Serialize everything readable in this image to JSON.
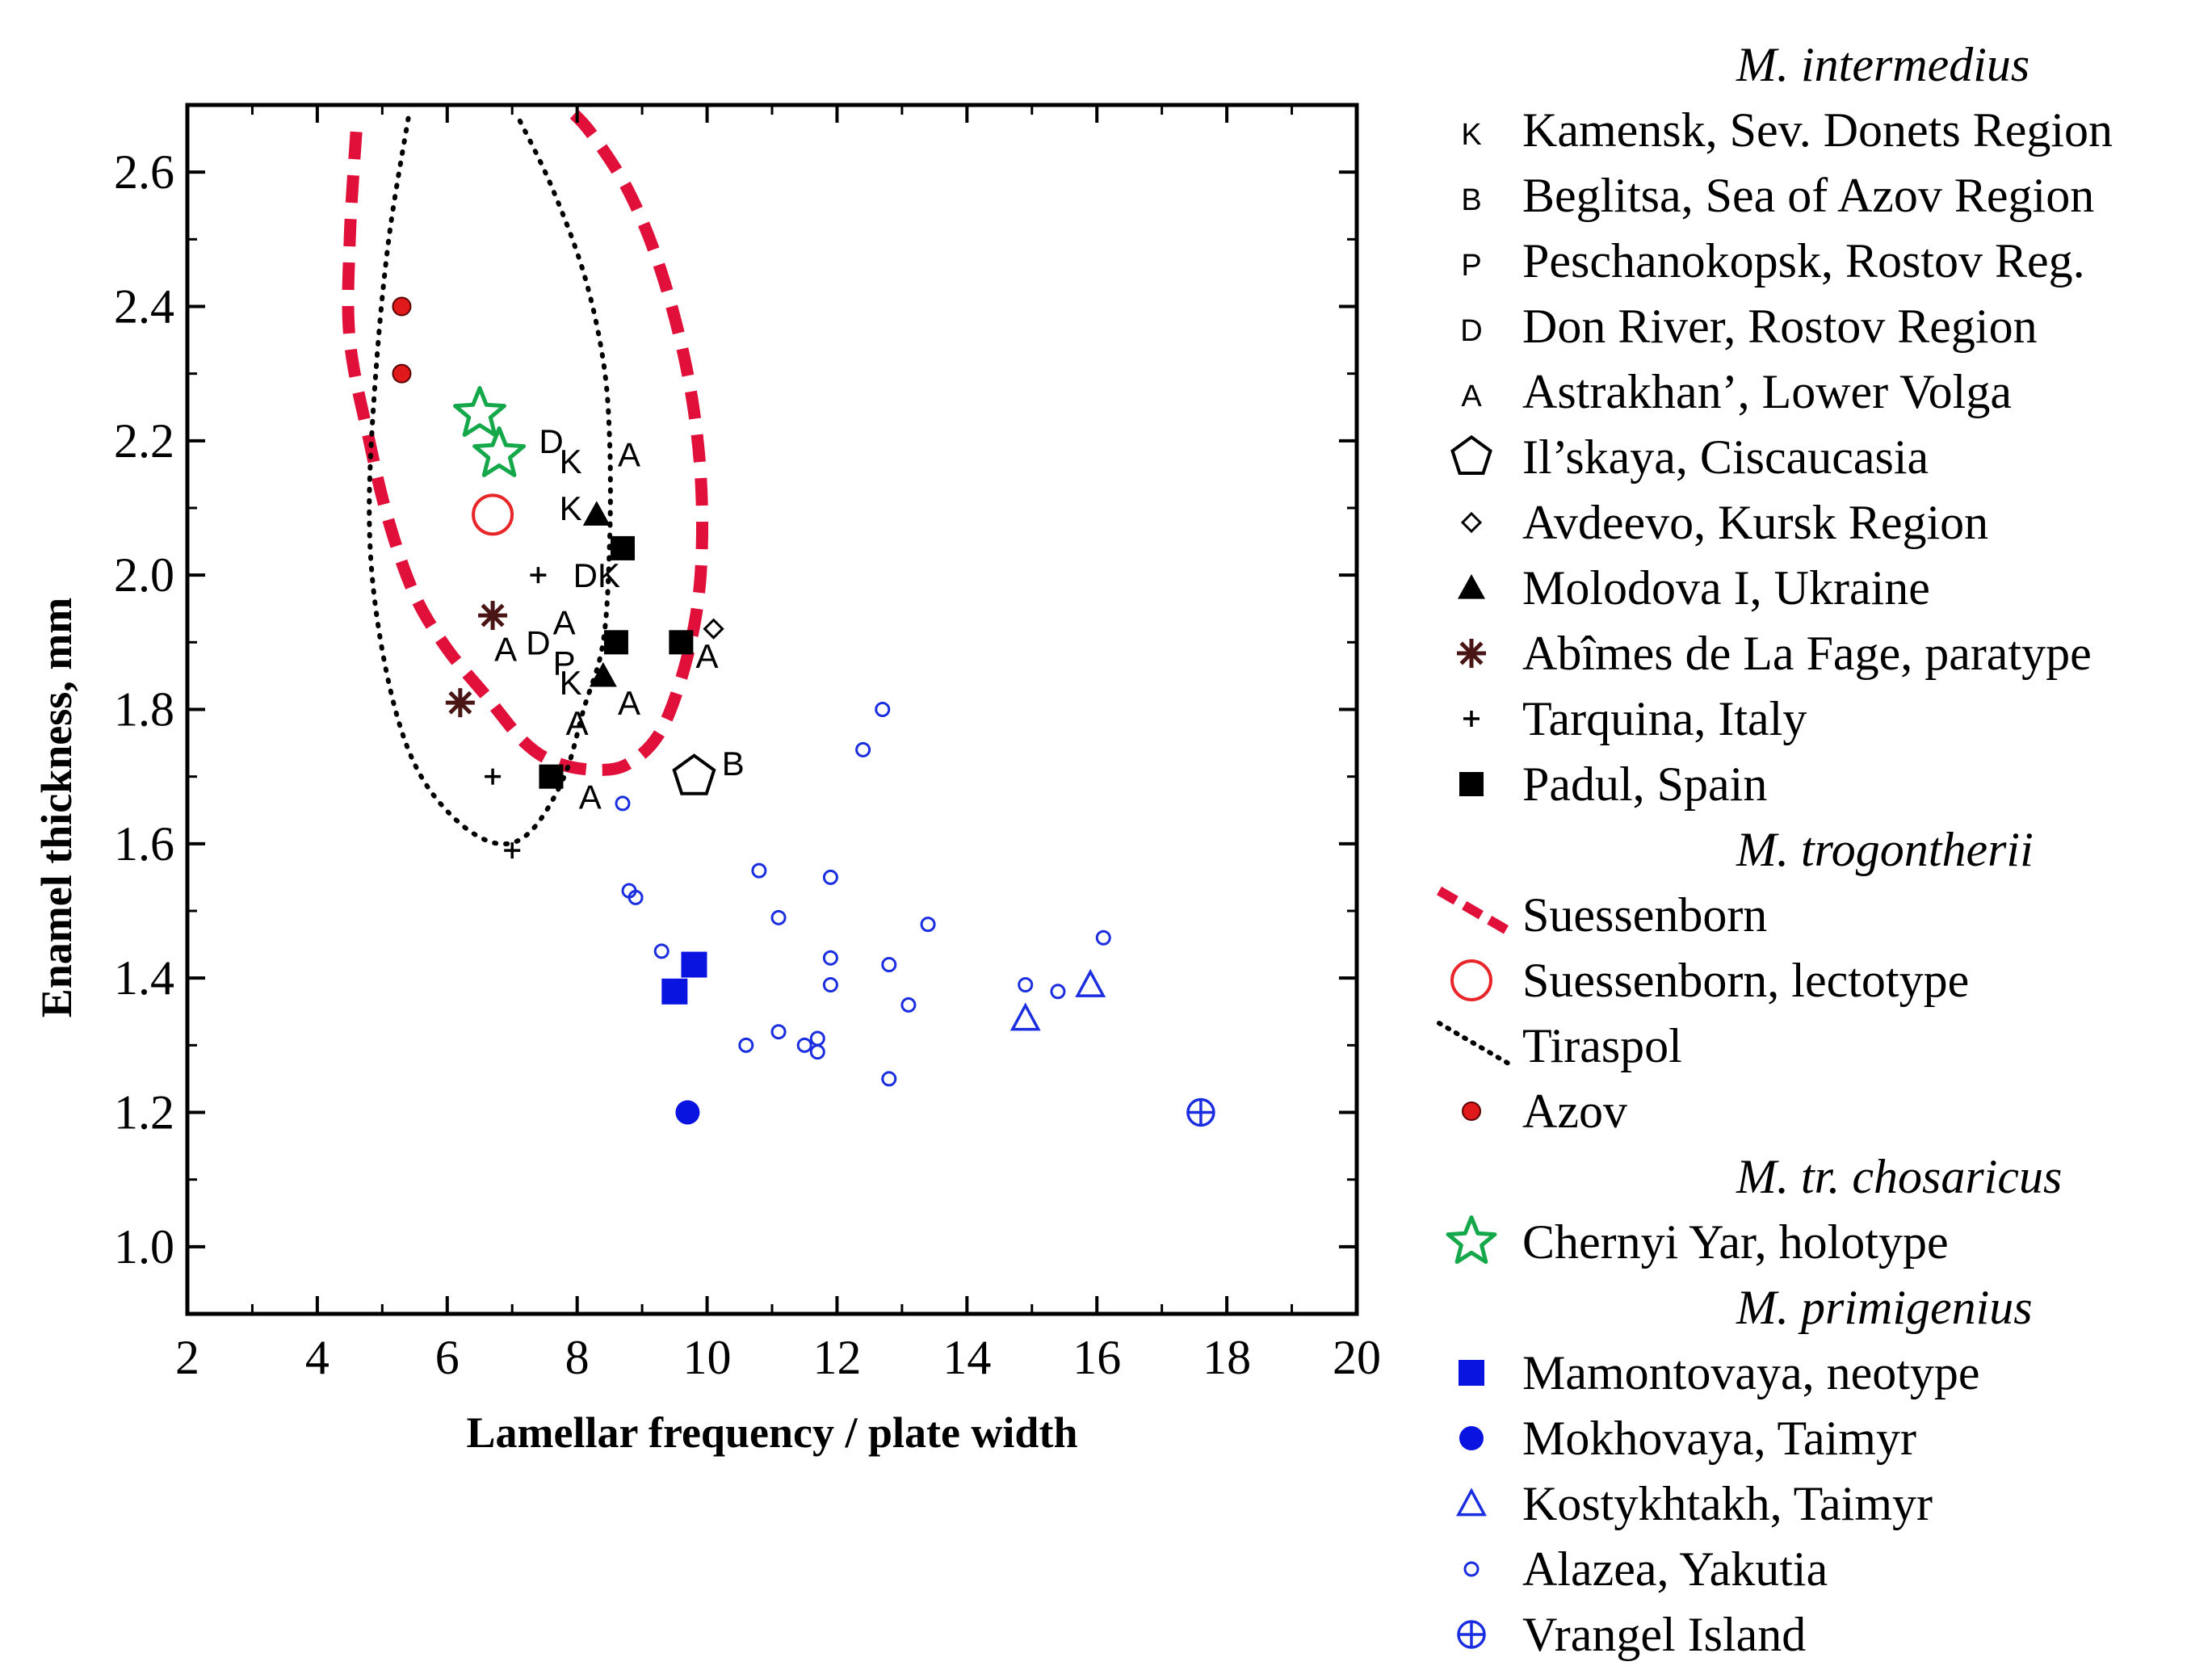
{
  "chart_data": {
    "type": "scatter",
    "xlabel": "Lamellar frequency / plate width",
    "ylabel": "Enamel thickness, mm",
    "xlim": [
      2,
      20
    ],
    "ylim": [
      0.9,
      2.7
    ],
    "xticks": [
      2,
      4,
      6,
      8,
      10,
      12,
      14,
      16,
      18,
      20
    ],
    "yticks": [
      1.0,
      1.2,
      1.4,
      1.6,
      1.8,
      2.0,
      2.2,
      2.4,
      2.6
    ],
    "xtick_labels": [
      "2",
      "4",
      "6",
      "8",
      "10",
      "12",
      "14",
      "16",
      "18",
      "20"
    ],
    "ytick_labels": [
      "1.0",
      "1.2",
      "1.4",
      "1.6",
      "1.8",
      "2.0",
      "2.2",
      "2.4",
      "2.6"
    ],
    "grid": false,
    "legend_position": "right",
    "legend_groups": [
      {
        "header": "M. intermedius",
        "items": [
          {
            "marker": "letter",
            "symbol": "K",
            "label": "Kamensk, Sev. Donets Region"
          },
          {
            "marker": "letter",
            "symbol": "B",
            "label": "Beglitsa, Sea of Azov Region"
          },
          {
            "marker": "letter",
            "symbol": "P",
            "label": "Peschanokopsk, Rostov Reg."
          },
          {
            "marker": "letter",
            "symbol": "D",
            "label": "Don River, Rostov Region"
          },
          {
            "marker": "letter",
            "symbol": "A",
            "label": "Astrakhan’, Lower Volga"
          },
          {
            "marker": "pentagon",
            "label": "Il’skaya, Ciscaucasia"
          },
          {
            "marker": "diamond",
            "label": "Avdeevo, Kursk Region"
          },
          {
            "marker": "triangle-filled",
            "label": "Molodova I, Ukraine"
          },
          {
            "marker": "asterisk",
            "label": "Abîmes de La Fage, paratype"
          },
          {
            "marker": "plus",
            "label": "Tarquina, Italy"
          },
          {
            "marker": "square-filled",
            "label": "Padul, Spain"
          }
        ]
      },
      {
        "header": "M. trogontherii",
        "items": [
          {
            "marker": "dashed-line",
            "label": "Suessenborn"
          },
          {
            "marker": "circle-open-red",
            "label": "Suessenborn, lectotype"
          },
          {
            "marker": "dotted-line",
            "label": "Tiraspol"
          },
          {
            "marker": "red-dot",
            "label": "Azov"
          }
        ]
      },
      {
        "header": "M. tr. chosaricus",
        "items": [
          {
            "marker": "star",
            "label": "Chernyi Yar, holotype"
          }
        ]
      },
      {
        "header": "M. primigenius",
        "items": [
          {
            "marker": "blue-square",
            "label": "Mamontovaya, neotype"
          },
          {
            "marker": "blue-circle",
            "label": "Mokhovaya, Taimyr"
          },
          {
            "marker": "blue-triangle",
            "label": "Kostykhtakh, Taimyr"
          },
          {
            "marker": "blue-small-circle",
            "label": "Alazea, Yakutia"
          },
          {
            "marker": "blue-circle-plus",
            "label": "Vrangel Island"
          }
        ]
      }
    ],
    "letter_points": [
      {
        "x": 7.6,
        "y": 2.2,
        "label": "D"
      },
      {
        "x": 7.9,
        "y": 2.17,
        "label": "K"
      },
      {
        "x": 8.8,
        "y": 2.18,
        "label": "A"
      },
      {
        "x": 7.9,
        "y": 2.1,
        "label": "K"
      },
      {
        "x": 8.3,
        "y": 2.0,
        "label": "DK"
      },
      {
        "x": 7.8,
        "y": 1.93,
        "label": "A"
      },
      {
        "x": 6.9,
        "y": 1.89,
        "label": "A"
      },
      {
        "x": 7.4,
        "y": 1.9,
        "label": "D"
      },
      {
        "x": 7.8,
        "y": 1.87,
        "label": "P"
      },
      {
        "x": 7.9,
        "y": 1.84,
        "label": "K"
      },
      {
        "x": 8.8,
        "y": 1.81,
        "label": "A"
      },
      {
        "x": 8.0,
        "y": 1.78,
        "label": "A"
      },
      {
        "x": 10.0,
        "y": 1.88,
        "label": "A"
      },
      {
        "x": 10.4,
        "y": 1.72,
        "label": "B"
      },
      {
        "x": 8.2,
        "y": 1.67,
        "label": "A"
      }
    ],
    "series": [
      {
        "name": "Il’skaya, Ciscaucasia",
        "marker": "pentagon",
        "points": [
          [
            9.8,
            1.7
          ]
        ]
      },
      {
        "name": "Avdeevo, Kursk Region",
        "marker": "diamond",
        "points": [
          [
            10.1,
            1.92
          ]
        ]
      },
      {
        "name": "Molodova I, Ukraine",
        "marker": "triangle-filled",
        "points": [
          [
            8.3,
            2.09
          ],
          [
            8.4,
            1.85
          ]
        ]
      },
      {
        "name": "Abîmes de La Fage, paratype",
        "marker": "asterisk",
        "points": [
          [
            6.7,
            1.94
          ],
          [
            6.2,
            1.81
          ]
        ]
      },
      {
        "name": "Tarquina, Italy",
        "marker": "plus",
        "points": [
          [
            7.4,
            2.0
          ],
          [
            6.7,
            1.7
          ],
          [
            7.0,
            1.59
          ]
        ]
      },
      {
        "name": "Padul, Spain",
        "marker": "square-filled",
        "points": [
          [
            8.7,
            2.04
          ],
          [
            8.6,
            1.9
          ],
          [
            9.6,
            1.9
          ],
          [
            7.6,
            1.7
          ]
        ]
      },
      {
        "name": "Suessenborn, lectotype",
        "marker": "circle-open-red",
        "points": [
          [
            6.7,
            2.09
          ]
        ]
      },
      {
        "name": "Azov",
        "marker": "red-dot",
        "points": [
          [
            5.3,
            2.4
          ],
          [
            5.3,
            2.3
          ]
        ]
      },
      {
        "name": "Chernyi Yar, holotype",
        "marker": "star",
        "points": [
          [
            6.5,
            2.24
          ],
          [
            6.8,
            2.18
          ]
        ]
      },
      {
        "name": "Mamontovaya, neotype",
        "marker": "blue-square",
        "points": [
          [
            9.5,
            1.38
          ],
          [
            9.8,
            1.42
          ]
        ]
      },
      {
        "name": "Mokhovaya, Taimyr",
        "marker": "blue-circle",
        "points": [
          [
            9.7,
            1.2
          ]
        ]
      },
      {
        "name": "Kostykhtakh, Taimyr",
        "marker": "blue-triangle",
        "points": [
          [
            14.9,
            1.34
          ],
          [
            15.9,
            1.39
          ]
        ]
      },
      {
        "name": "Alazea, Yakutia",
        "marker": "blue-small-circle",
        "points": [
          [
            12.7,
            1.8
          ],
          [
            12.4,
            1.74
          ],
          [
            8.7,
            1.66
          ],
          [
            10.8,
            1.56
          ],
          [
            11.9,
            1.55
          ],
          [
            8.8,
            1.53
          ],
          [
            8.9,
            1.52
          ],
          [
            11.1,
            1.49
          ],
          [
            13.4,
            1.48
          ],
          [
            16.1,
            1.46
          ],
          [
            9.3,
            1.44
          ],
          [
            11.9,
            1.43
          ],
          [
            12.8,
            1.42
          ],
          [
            11.9,
            1.39
          ],
          [
            14.9,
            1.39
          ],
          [
            15.4,
            1.38
          ],
          [
            13.1,
            1.36
          ],
          [
            11.1,
            1.32
          ],
          [
            11.7,
            1.31
          ],
          [
            11.5,
            1.3
          ],
          [
            10.6,
            1.3
          ],
          [
            11.7,
            1.29
          ],
          [
            12.8,
            1.25
          ]
        ]
      },
      {
        "name": "Vrangel Island",
        "marker": "blue-circle-plus",
        "points": [
          [
            17.6,
            1.2
          ]
        ]
      }
    ],
    "curves": [
      {
        "name": "Suessenborn",
        "style": "dashed",
        "color": "#e0103a",
        "points": [
          [
            4.6,
            2.66
          ],
          [
            4.5,
            2.5
          ],
          [
            4.5,
            2.35
          ],
          [
            4.8,
            2.2
          ],
          [
            5.1,
            2.08
          ],
          [
            5.5,
            1.97
          ],
          [
            6.0,
            1.89
          ],
          [
            6.6,
            1.82
          ],
          [
            7.2,
            1.75
          ],
          [
            7.7,
            1.72
          ],
          [
            8.3,
            1.71
          ],
          [
            8.8,
            1.72
          ],
          [
            9.3,
            1.77
          ],
          [
            9.7,
            1.88
          ],
          [
            9.9,
            2.0
          ],
          [
            9.9,
            2.15
          ],
          [
            9.7,
            2.3
          ],
          [
            9.3,
            2.45
          ],
          [
            8.8,
            2.57
          ],
          [
            8.2,
            2.66
          ],
          [
            7.8,
            2.7
          ]
        ]
      },
      {
        "name": "Tiraspol",
        "style": "dotted",
        "color": "#000000",
        "points": [
          [
            5.4,
            2.68
          ],
          [
            5.1,
            2.5
          ],
          [
            4.9,
            2.3
          ],
          [
            4.8,
            2.1
          ],
          [
            4.9,
            1.95
          ],
          [
            5.2,
            1.8
          ],
          [
            5.6,
            1.7
          ],
          [
            6.2,
            1.63
          ],
          [
            6.8,
            1.6
          ],
          [
            7.3,
            1.62
          ],
          [
            7.8,
            1.7
          ],
          [
            8.1,
            1.8
          ],
          [
            8.4,
            1.9
          ],
          [
            8.5,
            2.05
          ],
          [
            8.5,
            2.2
          ],
          [
            8.4,
            2.32
          ],
          [
            8.1,
            2.45
          ],
          [
            7.6,
            2.58
          ],
          [
            7.1,
            2.68
          ]
        ]
      }
    ]
  }
}
